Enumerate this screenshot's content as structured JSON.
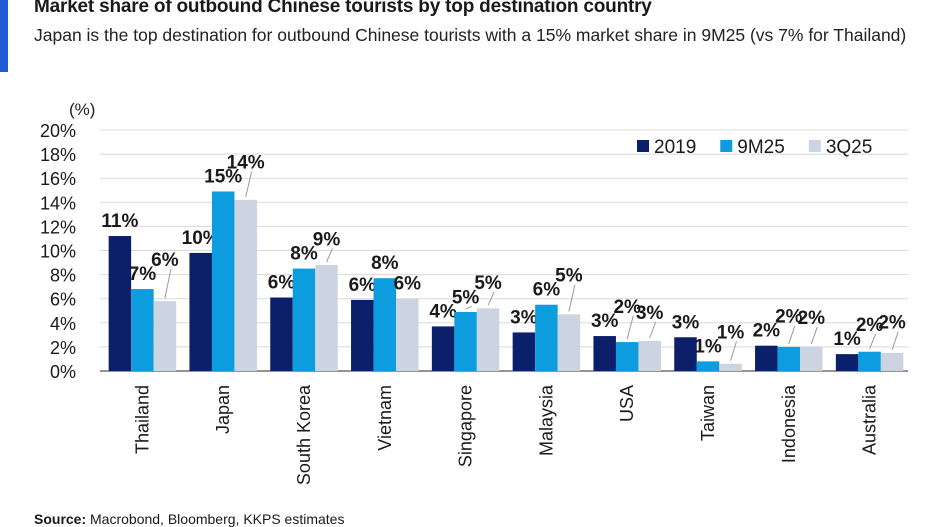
{
  "title": "Market share of outbound Chinese tourists by top destination country",
  "subtitle": "Japan is the top destination for outbound Chinese tourists with a 15% market share in 9M25 (vs 7% for Thailand)",
  "source_label": "Source:",
  "source_text": "Macrobond, Bloomberg, KKPS estimates",
  "chart_data": {
    "type": "bar",
    "unit_label": "(%)",
    "categories": [
      "Thailand",
      "Japan",
      "South Korea",
      "Vietnam",
      "Singapore",
      "Malaysia",
      "USA",
      "Taiwan",
      "Indonesia",
      "Australia"
    ],
    "series": [
      {
        "name": "2019",
        "color": "#0b1f6b",
        "values": [
          11.2,
          9.8,
          6.1,
          5.9,
          3.7,
          3.2,
          2.9,
          2.8,
          2.1,
          1.4
        ],
        "labels": [
          "11%",
          "10%",
          "6%",
          "6%",
          "4%",
          "3%",
          "3%",
          "3%",
          "2%",
          "1%"
        ]
      },
      {
        "name": "9M25",
        "color": "#0d9ddf",
        "values": [
          6.8,
          14.9,
          8.5,
          7.7,
          4.9,
          5.5,
          2.4,
          0.8,
          2.0,
          1.6
        ],
        "labels": [
          "7%",
          "15%",
          "8%",
          "8%",
          "5%",
          "6%",
          "2%",
          "1%",
          "2%",
          "2%"
        ]
      },
      {
        "name": "3Q25",
        "color": "#ccd3e1",
        "values": [
          5.8,
          14.2,
          8.8,
          6.0,
          5.2,
          4.7,
          2.5,
          0.6,
          2.0,
          1.5
        ],
        "labels": [
          "6%",
          "14%",
          "9%",
          "6%",
          "5%",
          "5%",
          "3%",
          "1%",
          "2%",
          "2%"
        ]
      }
    ],
    "yticks": [
      "0%",
      "2%",
      "4%",
      "6%",
      "8%",
      "10%",
      "12%",
      "14%",
      "16%",
      "18%",
      "20%"
    ],
    "ylim": [
      0,
      20
    ],
    "grid": true,
    "legend_position": "top-right"
  }
}
